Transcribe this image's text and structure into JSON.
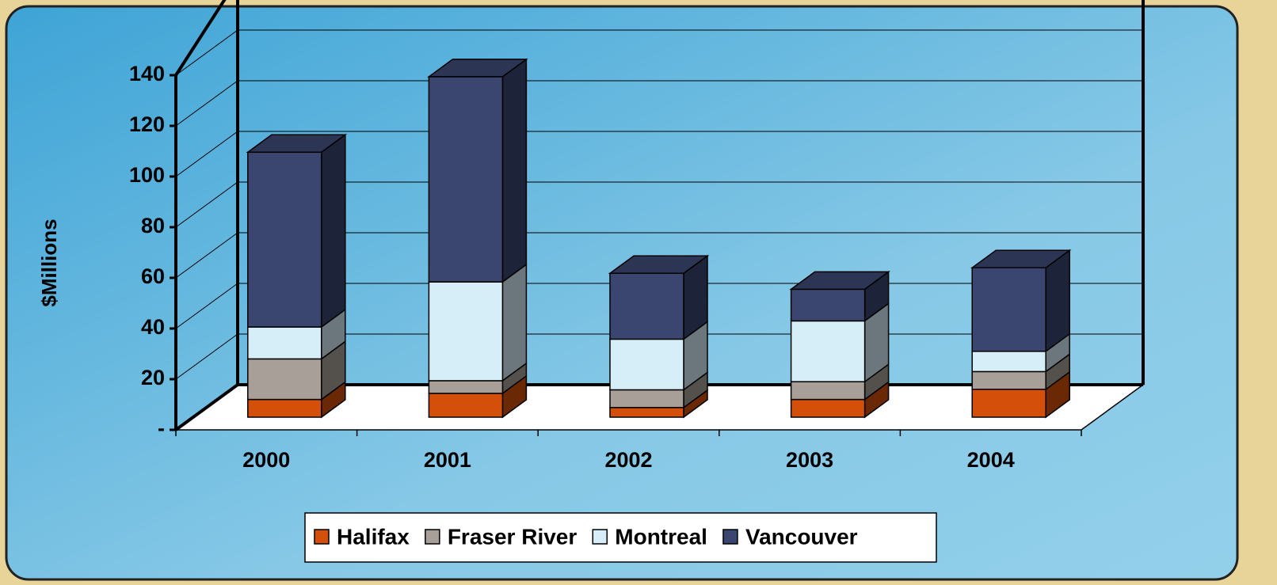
{
  "chart_data": {
    "type": "bar3d_stacked",
    "y_axis_label": "$Millions",
    "categories": [
      "2000",
      "2001",
      "2002",
      "2003",
      "2004"
    ],
    "series": [
      {
        "name": "Halifax",
        "color": "#d4500a",
        "values": [
          7,
          9.4,
          3.8,
          7,
          11
        ]
      },
      {
        "name": "Fraser River",
        "color": "#a89f98",
        "values": [
          16,
          5,
          7,
          7,
          7
        ]
      },
      {
        "name": "Montreal",
        "color": "#d6eef7",
        "values": [
          12.6,
          39,
          20,
          24,
          8
        ]
      },
      {
        "name": "Vancouver",
        "color": "#3a4670",
        "values": [
          69,
          81,
          26,
          12.5,
          33
        ]
      }
    ],
    "ylim": [
      0,
      160
    ],
    "yticks": [
      {
        "value": 0,
        "label": "-"
      },
      20,
      40,
      60,
      80,
      100,
      120,
      140
    ],
    "grid": true
  }
}
